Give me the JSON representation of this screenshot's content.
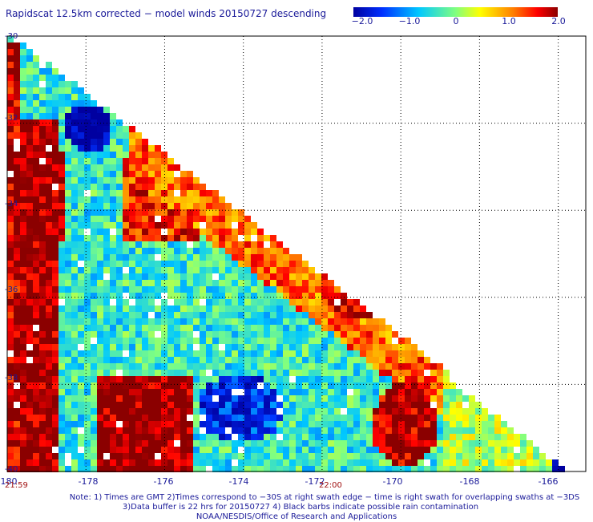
{
  "title": "Rapidscat 12.5km corrected − model winds 20150727 descending",
  "colorbar": {
    "labels": [
      "−2.0",
      "−1.0",
      "0",
      "1.0",
      "2.0"
    ],
    "values": [
      -2.0,
      -1.0,
      0,
      1.0,
      2.0
    ],
    "colors": [
      "#0000a0",
      "#0050ff",
      "#00e0ff",
      "#ffff00",
      "#ff8000",
      "#ff0000",
      "#8b0000"
    ]
  },
  "axes": {
    "lat_labels": [
      "-30",
      "-32",
      "-34",
      "-36",
      "-38",
      "-40"
    ],
    "lon_labels": [
      "-180",
      "-178",
      "-176",
      "-174",
      "-172",
      "-170",
      "-168",
      "-166"
    ],
    "lat_range": [
      -40,
      -30
    ],
    "lon_range": [
      -180,
      -165.3
    ]
  },
  "times": {
    "start": "21:59",
    "mid": "22:00"
  },
  "notes": [
    "Note: 1) Times are GMT 2)Times correspond to −30S at right swath edge − time is right swath for overlapping swaths at −3DS",
    "3)Data buffer is 22 hrs for 20150727 4) Black barbs indicate possible rain contamination",
    "NOAA/NESDIS/Office of Research and Applications"
  ]
}
